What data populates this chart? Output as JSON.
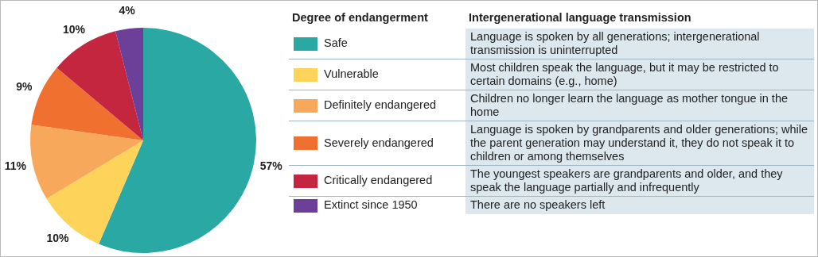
{
  "chart_data": {
    "type": "pie",
    "legend_title": "Degree of endangerment",
    "categories": [
      "Safe",
      "Vulnerable",
      "Definitely endangered",
      "Severely endangered",
      "Critically endangered",
      "Extinct since 1950"
    ],
    "values": [
      57,
      10,
      11,
      9,
      10,
      4
    ],
    "value_labels": [
      "57%",
      "10%",
      "11%",
      "9%",
      "10%",
      "4%"
    ],
    "colors": [
      "#2aa8a3",
      "#fdd35a",
      "#f8a85a",
      "#f07030",
      "#c4253f",
      "#6c3f99"
    ],
    "legend": "right",
    "annotations": [
      "Intergenerational language transmission",
      "Language is spoken by all generations; intergenerational transmission is uninterrupted",
      "Most children speak the language, but it may be restricted to certain domains (e.g., home)",
      "Children no longer learn the language as mother tongue in the home",
      "Language is spoken by grandparents and older generations; while the parent generation may understand it, they do not speak it to children or among themselves",
      "The youngest speakers are grandparents and older, and they speak the language partially and infrequently",
      "There are no speakers left"
    ]
  }
}
